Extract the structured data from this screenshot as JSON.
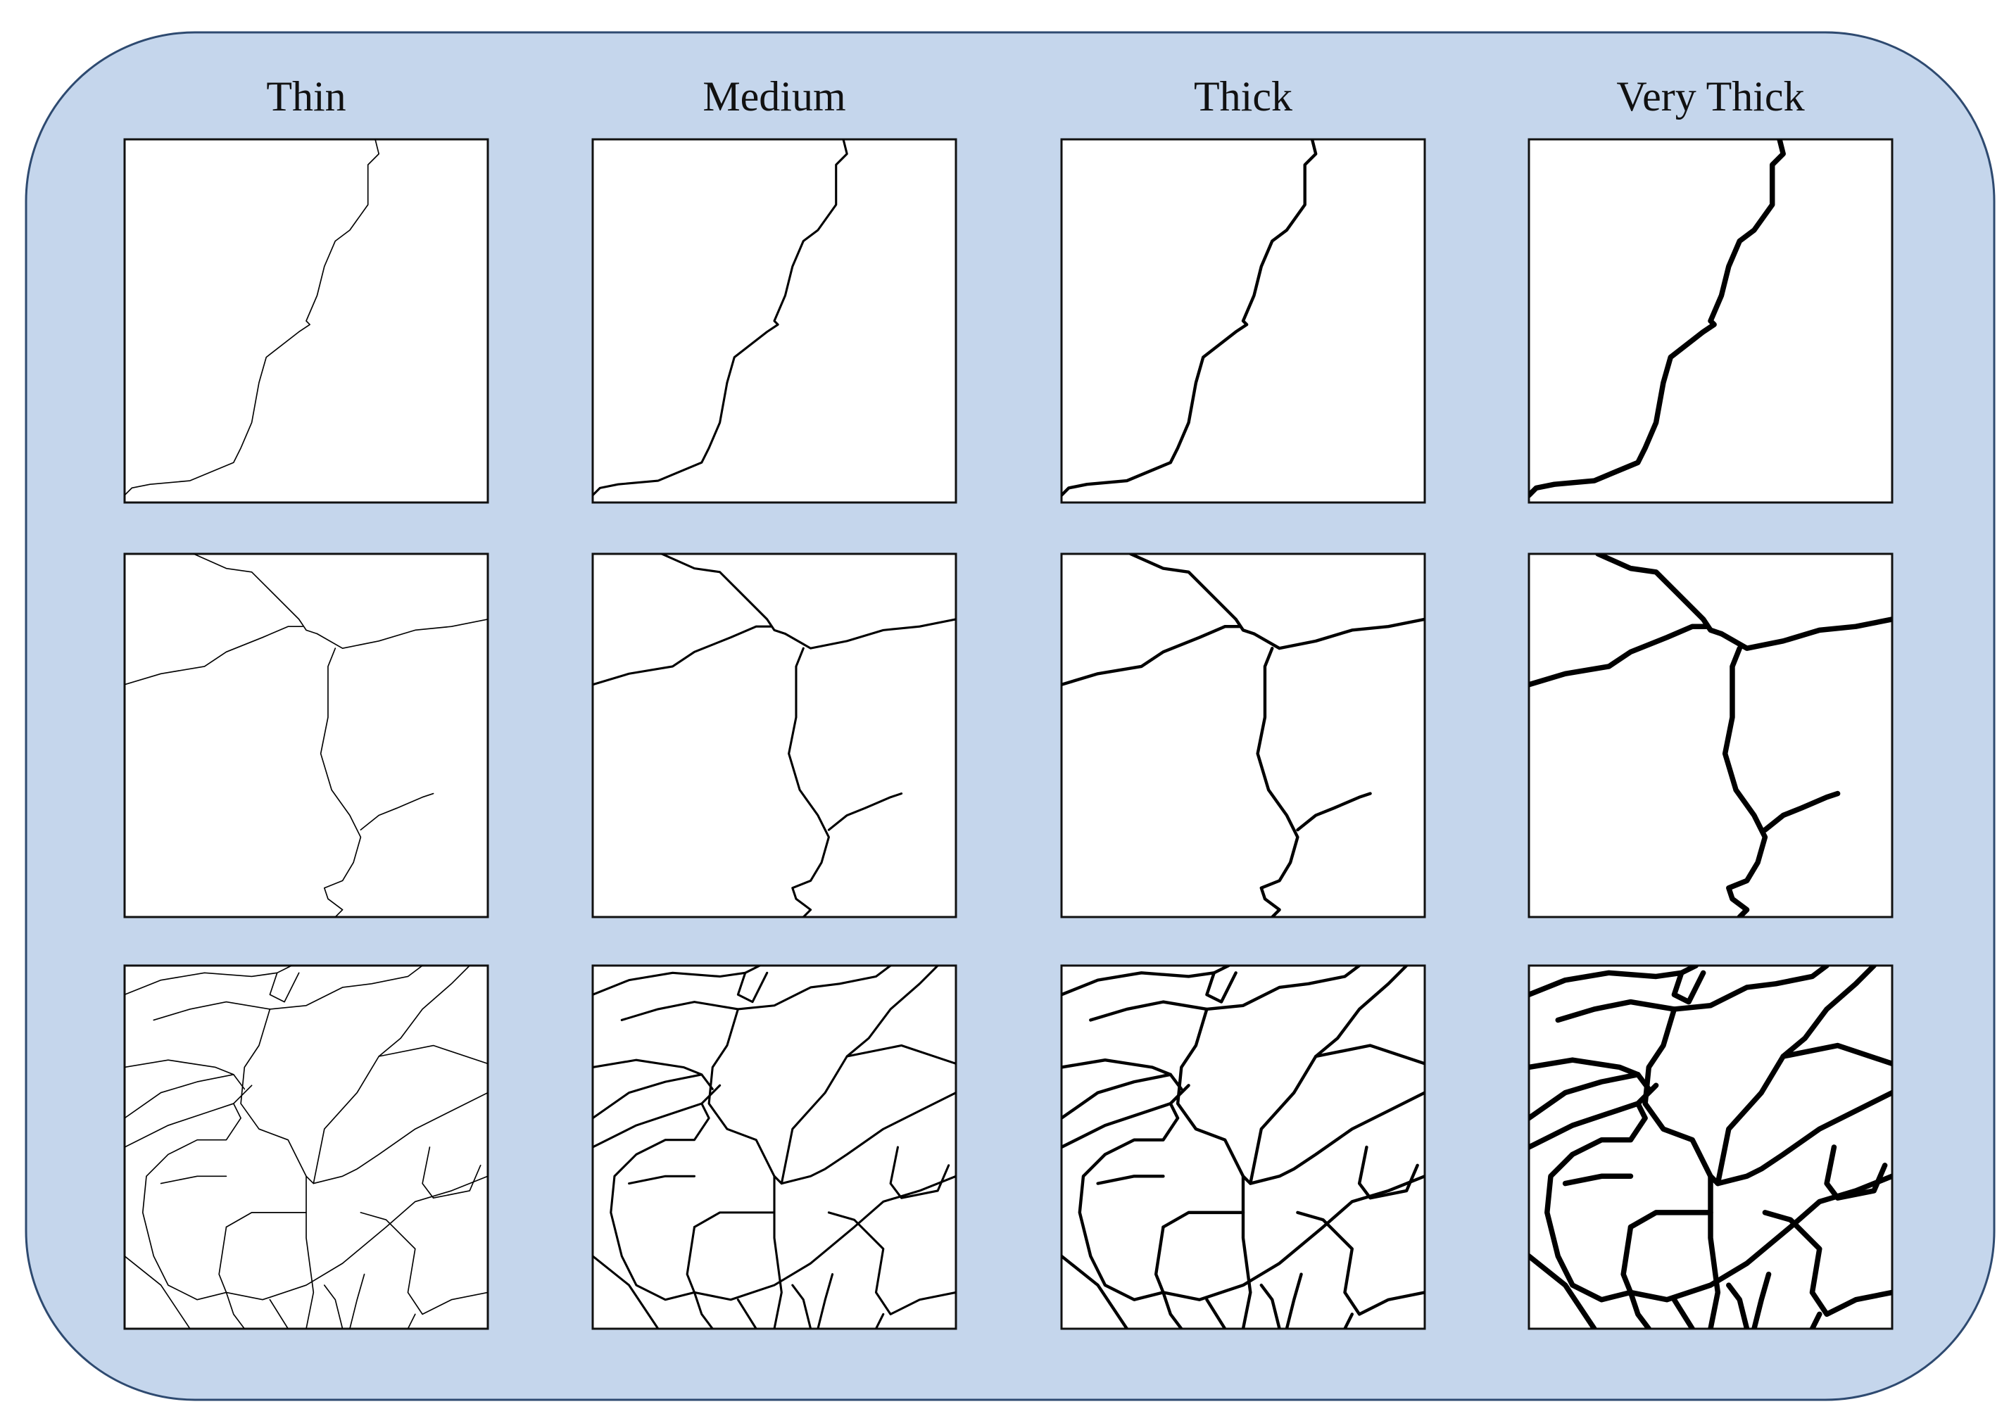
{
  "columns": [
    "Thin",
    "Medium",
    "Thick",
    "Very Thick"
  ]
}
